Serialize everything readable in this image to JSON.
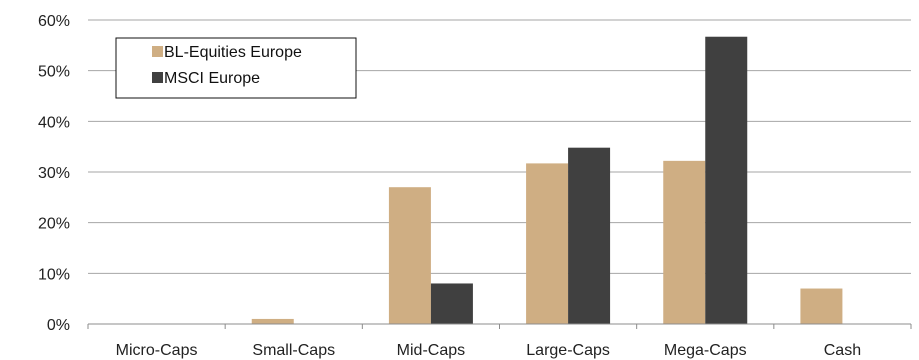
{
  "chart_data": {
    "type": "bar",
    "title": "",
    "xlabel": "",
    "ylabel": "",
    "categories": [
      "Micro-Caps",
      "Small-Caps",
      "Mid-Caps",
      "Large-Caps",
      "Mega-Caps",
      "Cash"
    ],
    "series": [
      {
        "name": "BL-Equities Europe",
        "color": "#cfae83",
        "values": [
          0,
          1.0,
          27.0,
          31.7,
          32.2,
          7.0
        ]
      },
      {
        "name": "MSCI Europe",
        "color": "#404040",
        "values": [
          0,
          0,
          8.0,
          34.8,
          56.7,
          0
        ]
      }
    ],
    "ylim": [
      0,
      60
    ],
    "yticks": [
      "0%",
      "10%",
      "20%",
      "30%",
      "40%",
      "50%",
      "60%"
    ],
    "grid": true,
    "legend_position": "top-left"
  }
}
